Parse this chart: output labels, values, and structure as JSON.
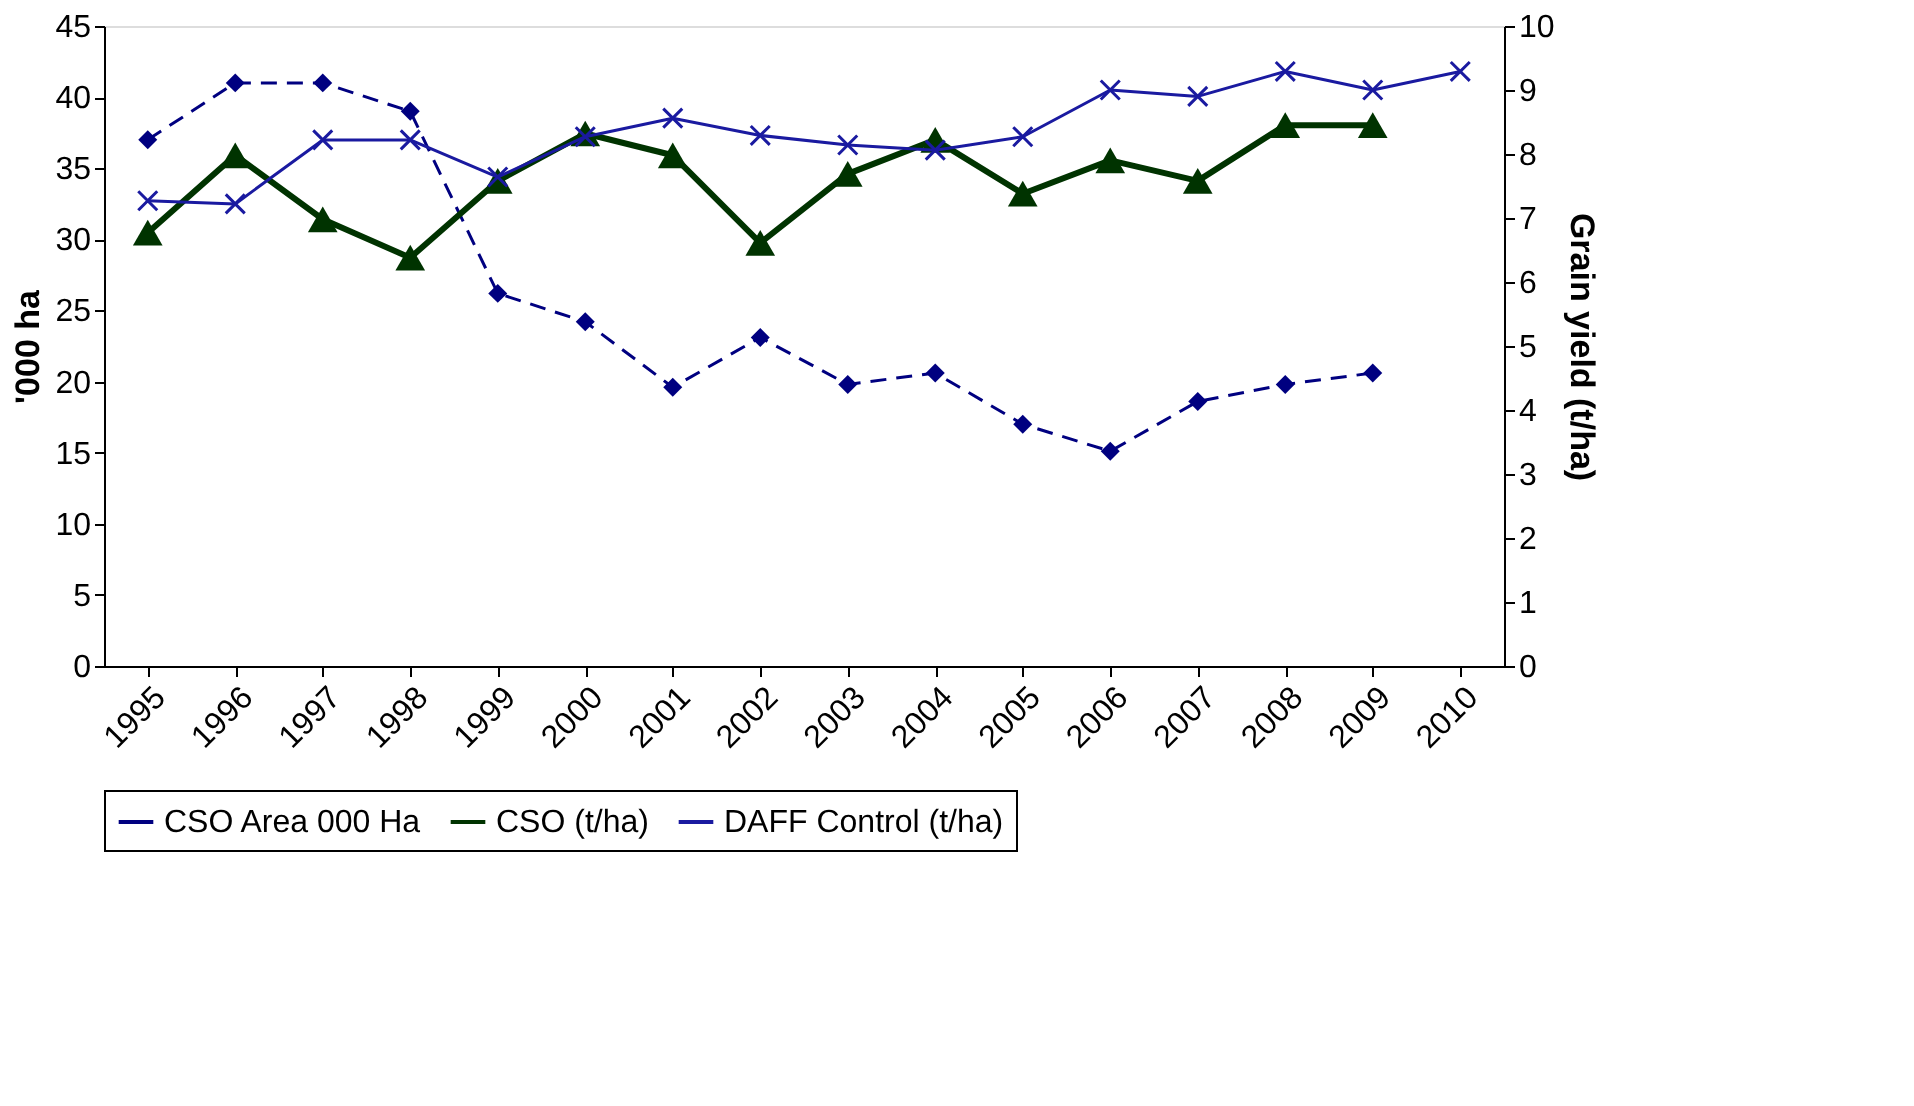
{
  "chart_data": {
    "type": "line",
    "categories": [
      "1995",
      "1996",
      "1997",
      "1998",
      "1999",
      "2000",
      "2001",
      "2002",
      "2003",
      "2004",
      "2005",
      "2006",
      "2007",
      "2008",
      "2009",
      "2010"
    ],
    "ylabel": "'000 ha",
    "y2label": "Grain yield (t/ha)",
    "ylim": [
      0,
      45
    ],
    "yticks": [
      0,
      5,
      10,
      15,
      20,
      25,
      30,
      35,
      40,
      45
    ],
    "y2lim": [
      0,
      10
    ],
    "y2ticks": [
      0,
      1,
      2,
      3,
      4,
      5,
      6,
      7,
      8,
      9,
      10
    ],
    "grid": false,
    "legend": "bottom",
    "series": [
      {
        "name": "CSO Area 000 Ha",
        "color": "#000080",
        "marker": "diamond",
        "line_style": "dashed",
        "values": [
          37,
          41,
          41,
          39,
          26.2,
          24.2,
          19.6,
          23.1,
          19.8,
          20.6,
          17,
          15.1,
          18.6,
          19.8,
          20.6,
          null
        ]
      },
      {
        "name": "CSO (t/ha)",
        "color": "#003300",
        "marker": "triangle",
        "line_style": "solid",
        "axis": "y2",
        "values": [
          6.77,
          7.98,
          6.98,
          6.38,
          7.58,
          8.32,
          7.98,
          6.61,
          7.69,
          8.22,
          7.38,
          7.9,
          7.58,
          8.45,
          8.45,
          null
        ]
      },
      {
        "name": "DAFF Control (t/ha)",
        "color": "#1a1aa0",
        "marker": "cross",
        "line_style": "solid",
        "axis": "y2",
        "values": [
          7.27,
          7.22,
          8.22,
          8.22,
          7.64,
          8.27,
          8.56,
          8.29,
          8.14,
          8.06,
          8.27,
          9.0,
          8.9,
          9.29,
          9.0,
          9.29
        ]
      }
    ]
  }
}
